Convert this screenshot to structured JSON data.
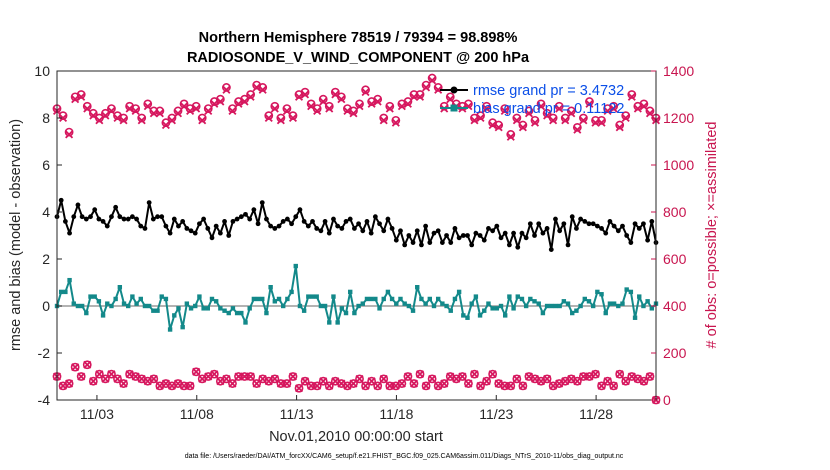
{
  "chart_data": {
    "type": "line",
    "title": "Northern Hemisphere 78519 / 79394 = 98.898%",
    "subtitle": "RADIOSONDE_V_WIND_COMPONENT @ 200 hPa",
    "xlabel": "Nov.01,2010 00:00:00 start",
    "ylabel": "rmse and bias (model - observation)",
    "ylabel_right": "# of obs: o=possible; ×=assimilated",
    "footnote": "data file: /Users/raeder/DAI/ATM_forcXX/CAM6_setup/f.e21.FHIST_BGC.f09_025.CAM6assim.011/Diags_NTrS_2010-11/obs_diag_output.nc",
    "xlim": [
      1,
      31
    ],
    "ylim": [
      -4,
      10
    ],
    "ylim_right": [
      0,
      1400
    ],
    "x_tick_labels": [
      "11/03",
      "11/08",
      "11/13",
      "11/18",
      "11/23",
      "11/28"
    ],
    "y_tick_labels": [
      "-4",
      "-2",
      "0",
      "2",
      "4",
      "6",
      "8",
      "10"
    ],
    "y_right_tick_labels": [
      "0",
      "200",
      "400",
      "600",
      "800",
      "1000",
      "1200",
      "1400"
    ],
    "colors": {
      "rmse": "#000000",
      "bias": "#13898a",
      "obs": "#d6175e",
      "zero_line": "#9a9a9a"
    },
    "legend_loc": "top-right",
    "legend": [
      {
        "label": "rmse grand pr = 3.4732",
        "color": "#000000"
      },
      {
        "label": "bias grand pr = 0.11122",
        "color": "#13898a"
      }
    ],
    "series": [
      {
        "name": "rmse",
        "values": [
          3.8,
          4.5,
          3.6,
          3.1,
          3.8,
          4.3,
          3.8,
          3.7,
          3.8,
          4.1,
          3.7,
          3.6,
          3.4,
          3.8,
          4.2,
          3.8,
          3.7,
          3.7,
          3.8,
          3.7,
          3.4,
          3.3,
          4.4,
          3.7,
          3.8,
          3.8,
          3.4,
          3.1,
          3.7,
          3.4,
          3.6,
          3.3,
          3.2,
          3.1,
          3.5,
          3.7,
          3.3,
          2.9,
          3.4,
          3.1,
          3.6,
          3.0,
          3.6,
          3.7,
          3.8,
          3.9,
          3.7,
          4.1,
          3.5,
          4.4,
          3.7,
          3.4,
          3.3,
          3.4,
          3.6,
          3.7,
          3.5,
          3.8,
          4.1,
          3.6,
          3.4,
          3.6,
          3.3,
          3.2,
          3.6,
          3.1,
          3.7,
          3.4,
          3.3,
          3.6,
          3.7,
          3.3,
          3.5,
          3.2,
          3.6,
          3.1,
          3.8,
          3.5,
          3.2,
          3.7,
          3.3,
          2.8,
          3.2,
          2.6,
          3.0,
          2.7,
          3.2,
          2.6,
          3.4,
          2.7,
          3.1,
          3.2,
          2.7,
          3.0,
          2.7,
          3.3,
          2.9,
          3.0,
          3.0,
          2.6,
          3.1,
          3.0,
          2.8,
          3.3,
          3.2,
          3.4,
          2.9,
          3.1,
          2.6,
          3.1,
          2.5,
          3.1,
          2.9,
          3.5,
          3.0,
          3.5,
          3.1,
          3.3,
          2.4,
          3.7,
          3.2,
          3.5,
          2.6,
          3.8,
          3.3,
          3.7,
          3.6,
          3.5,
          3.5,
          3.4,
          3.3,
          3.1,
          3.6,
          3.4,
          3.2,
          3.4,
          3.0,
          2.7,
          3.5,
          3.3,
          3.5,
          2.8,
          3.6,
          2.7
        ]
      },
      {
        "name": "bias",
        "values": [
          0.0,
          0.6,
          0.6,
          1.1,
          0.1,
          0.0,
          0.0,
          -0.3,
          0.4,
          0.4,
          0.2,
          -0.4,
          0.1,
          0.0,
          0.3,
          0.8,
          0.1,
          0.0,
          0.4,
          0.1,
          0.3,
          0.0,
          0.0,
          -0.2,
          -0.2,
          0.4,
          0.3,
          -1.0,
          -0.4,
          -0.1,
          -0.9,
          0.1,
          -0.1,
          0.0,
          0.4,
          -0.1,
          -0.1,
          0.3,
          0.2,
          -0.1,
          -0.2,
          -0.3,
          -0.1,
          -0.3,
          -0.3,
          -0.7,
          -0.1,
          0.3,
          0.3,
          0.3,
          -0.3,
          0.8,
          0.2,
          0.3,
          0.0,
          0.3,
          0.6,
          1.7,
          0.0,
          -0.2,
          0.4,
          0.4,
          0.4,
          0.0,
          0.0,
          -0.7,
          0.4,
          -0.7,
          -0.1,
          -0.3,
          0.6,
          -0.3,
          0.0,
          0.1,
          0.3,
          0.3,
          0.3,
          -0.1,
          0.3,
          0.6,
          0.3,
          0.1,
          0.3,
          0.1,
          0.0,
          -0.2,
          0.8,
          0.3,
          0.1,
          0.3,
          0.0,
          0.3,
          0.1,
          0.0,
          -0.2,
          0.3,
          0.6,
          -0.4,
          -0.5,
          0.1,
          0.4,
          -0.4,
          -0.2,
          0.1,
          -0.1,
          -0.1,
          0.0,
          -0.4,
          0.4,
          -0.1,
          0.4,
          0.3,
          0.0,
          0.3,
          0.2,
          0.1,
          -0.3,
          0.0,
          0.0,
          0.0,
          0.0,
          0.2,
          0.1,
          -0.3,
          -0.2,
          0.0,
          0.3,
          0.2,
          0.0,
          0.6,
          0.5,
          -0.3,
          0.1,
          0.1,
          0.0,
          0.1,
          0.7,
          0.6,
          -0.5,
          0.4,
          0.0,
          0.2,
          -0.1,
          0.1
        ]
      },
      {
        "name": "obs_possible",
        "values": [
          1240,
          1210,
          1140,
          1290,
          1300,
          1250,
          1220,
          1200,
          1220,
          1240,
          1210,
          1200,
          1250,
          1240,
          1200,
          1260,
          1230,
          1230,
          1180,
          1200,
          1230,
          1260,
          1240,
          1250,
          1200,
          1240,
          1270,
          1280,
          1330,
          1240,
          1270,
          1280,
          1300,
          1340,
          1330,
          1210,
          1250,
          1200,
          1240,
          1210,
          1300,
          1310,
          1260,
          1240,
          1280,
          1250,
          1310,
          1290,
          1240,
          1230,
          1260,
          1320,
          1270,
          1280,
          1200,
          1250,
          1190,
          1260,
          1270,
          1300,
          1300,
          1340,
          1370,
          1330,
          1250,
          1290,
          1260,
          1250,
          1260,
          1200,
          1210,
          1250,
          1180,
          1170,
          1240,
          1130,
          1200,
          1170,
          1230,
          1190,
          1260,
          1220,
          1200,
          1250,
          1200,
          1230,
          1160,
          1200,
          1270,
          1190,
          1190,
          1240,
          1250,
          1170,
          1210,
          1300,
          1250,
          1260,
          1230,
          1200
        ]
      },
      {
        "name": "obs_assimilated",
        "values": [
          1230,
          1200,
          1130,
          1280,
          1290,
          1240,
          1210,
          1190,
          1210,
          1230,
          1200,
          1190,
          1240,
          1230,
          1190,
          1250,
          1220,
          1220,
          1170,
          1190,
          1220,
          1250,
          1230,
          1240,
          1190,
          1230,
          1260,
          1270,
          1320,
          1230,
          1260,
          1270,
          1290,
          1330,
          1320,
          1200,
          1240,
          1190,
          1230,
          1200,
          1290,
          1300,
          1250,
          1230,
          1270,
          1240,
          1300,
          1280,
          1230,
          1220,
          1250,
          1310,
          1260,
          1270,
          1190,
          1240,
          1180,
          1250,
          1260,
          1290,
          1290,
          1330,
          1360,
          1320,
          1240,
          1280,
          1250,
          1240,
          1250,
          1190,
          1200,
          1240,
          1170,
          1160,
          1230,
          1120,
          1190,
          1160,
          1220,
          1180,
          1250,
          1210,
          1190,
          1240,
          1190,
          1220,
          1150,
          1190,
          1260,
          1180,
          1180,
          1230,
          1240,
          1160,
          1200,
          1290,
          1240,
          1250,
          1220,
          1190
        ]
      },
      {
        "name": "obs_low",
        "values": [
          100,
          60,
          70,
          140,
          100,
          150,
          80,
          110,
          90,
          110,
          90,
          70,
          110,
          100,
          90,
          80,
          90,
          60,
          70,
          60,
          70,
          60,
          60,
          120,
          90,
          100,
          110,
          80,
          90,
          70,
          100,
          100,
          100,
          70,
          90,
          80,
          90,
          70,
          70,
          100,
          50,
          80,
          60,
          60,
          80,
          60,
          80,
          70,
          60,
          70,
          90,
          60,
          80,
          60,
          90,
          60,
          60,
          70,
          100,
          70,
          110,
          60,
          90,
          60,
          70,
          100,
          90,
          100,
          70,
          110,
          60,
          80,
          110,
          70,
          60,
          60,
          90,
          60,
          100,
          90,
          80,
          90,
          60,
          70,
          80,
          90,
          80,
          100,
          100,
          110,
          60,
          80,
          60,
          110,
          80,
          100,
          90,
          80,
          100,
          0
        ]
      }
    ]
  }
}
